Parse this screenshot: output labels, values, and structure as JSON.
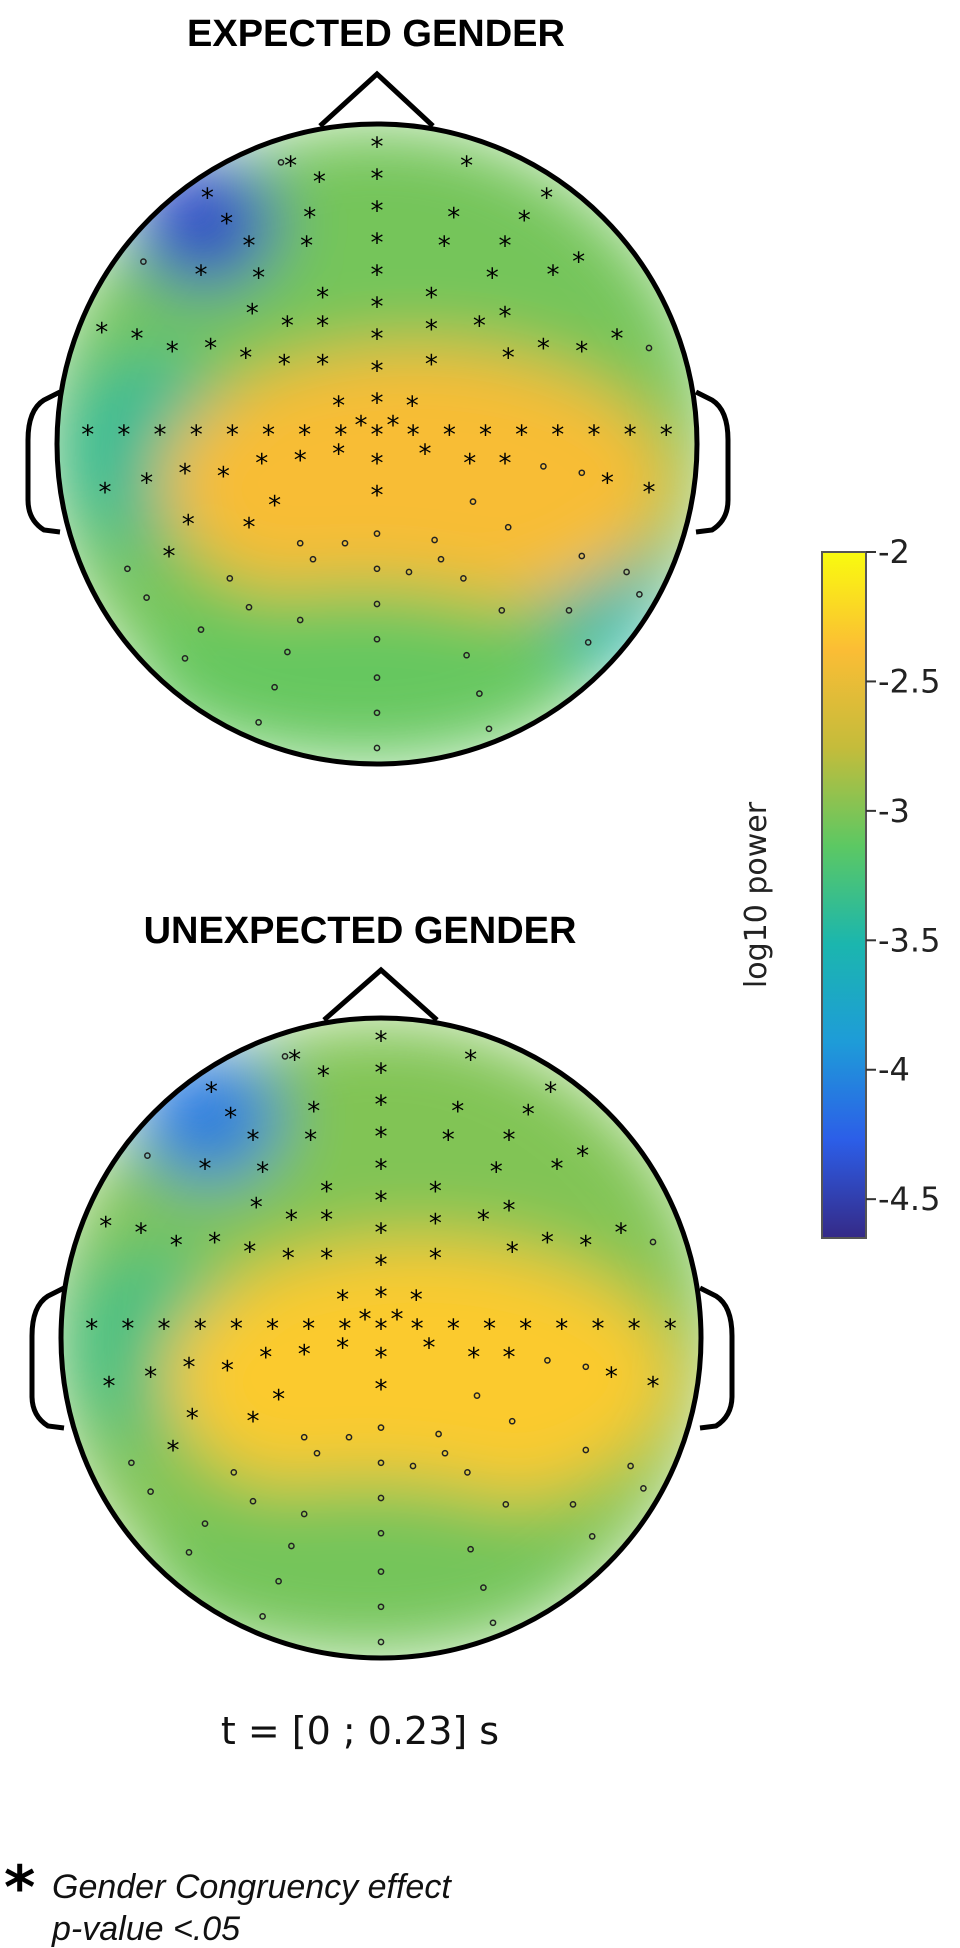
{
  "chart_data": [
    {
      "type": "heatmap",
      "subtype": "topographic-scalp-map",
      "title": "EXPECTED GENDER",
      "blob_levels_log10_power": {
        "background": -3.05,
        "frontal_left_min": -4.4,
        "left_temporal": -3.4,
        "right_temporal": -3.5,
        "central_max": -2.4,
        "occipital": -3.1
      },
      "significant_marker": "*",
      "nonsignificant_marker": "o"
    },
    {
      "type": "heatmap",
      "subtype": "topographic-scalp-map",
      "title": "UNEXPECTED GENDER",
      "blob_levels_log10_power": {
        "background": -3.0,
        "frontal_left_min": -4.1,
        "left_temporal": -3.3,
        "central_max": -2.3,
        "occipital": -3.05
      },
      "significant_marker": "*",
      "nonsignificant_marker": "o"
    }
  ],
  "colorbar": {
    "label": "log10 power",
    "range": [
      -4.65,
      -2.0
    ],
    "ticks": [
      "-2",
      "-2.5",
      "-3",
      "-3.5",
      "-4",
      "-4.5"
    ],
    "colormap": "parula",
    "colors": [
      "#352a87",
      "#2c5ee8",
      "#1e9cd8",
      "#1bb6ae",
      "#5cc863",
      "#c4bc3b",
      "#fbbd35",
      "#f9fb0e"
    ]
  },
  "time_window": "t = [0 ; 0.23] s",
  "legend": {
    "symbol": "*",
    "line1": "Gender Congruency effect",
    "line2": "p-value <.05"
  }
}
